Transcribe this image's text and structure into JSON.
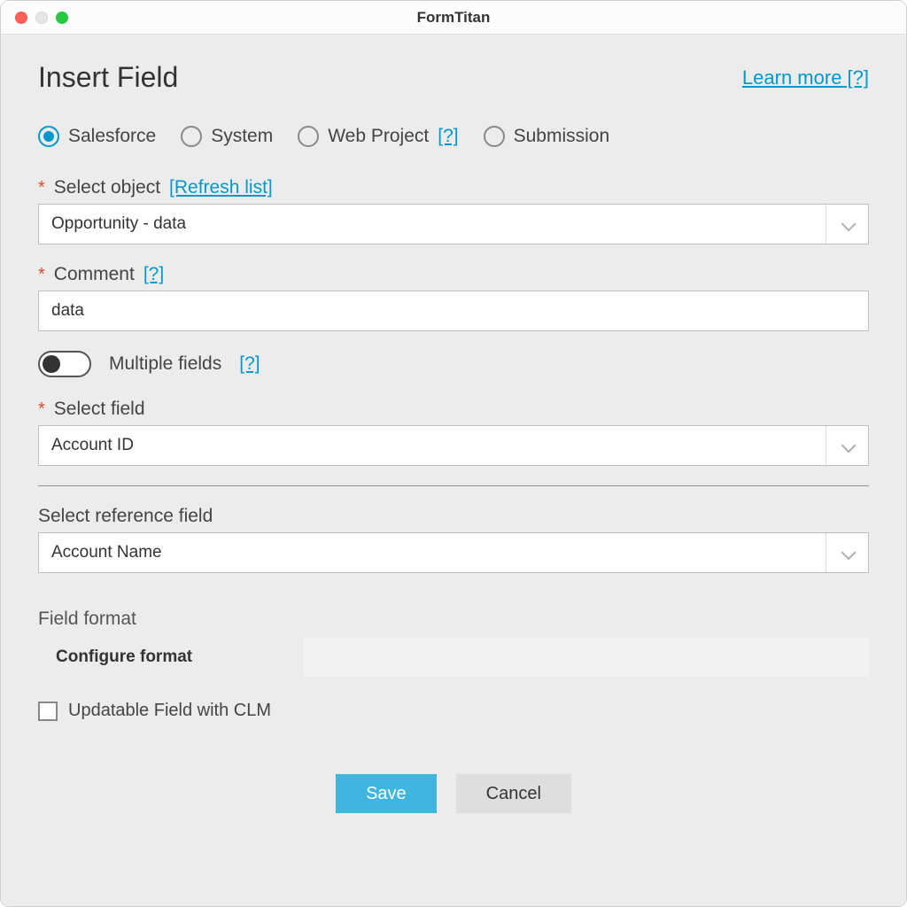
{
  "window": {
    "title": "FormTitan"
  },
  "header": {
    "title": "Insert Field",
    "learn_more": "Learn more [?]"
  },
  "radios": {
    "salesforce": {
      "label": "Salesforce",
      "selected": true
    },
    "system": {
      "label": "System",
      "selected": false
    },
    "webproject": {
      "label": "Web Project",
      "help": "[?]",
      "selected": false
    },
    "submission": {
      "label": "Submission",
      "selected": false
    }
  },
  "select_object": {
    "label": "Select object",
    "refresh": "[Refresh list]",
    "value": "Opportunity - data",
    "required": true
  },
  "comment": {
    "label": "Comment",
    "help": "[?]",
    "value": "data",
    "required": true
  },
  "multiple_fields": {
    "label": "Multiple fields",
    "help": "[?]",
    "on": false
  },
  "select_field": {
    "label": "Select field",
    "value": "Account ID",
    "required": true
  },
  "select_ref_field": {
    "label": "Select reference field",
    "value": "Account Name"
  },
  "field_format": {
    "label": "Field format",
    "configure": "Configure format"
  },
  "updatable": {
    "label": "Updatable Field with CLM",
    "checked": false
  },
  "buttons": {
    "save": "Save",
    "cancel": "Cancel"
  },
  "colors": {
    "accent": "#0099cc",
    "primary_btn": "#3fb5e0",
    "required": "#d94c2a",
    "bg": "#ececec"
  }
}
